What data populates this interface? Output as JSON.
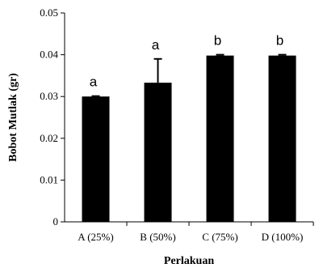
{
  "chart_data": {
    "type": "bar",
    "title": "",
    "xlabel": "Perlakuan",
    "ylabel": "Bobot Mutlak (gr)",
    "ylim": [
      0,
      0.05
    ],
    "yticks": [
      0,
      0.01,
      0.02,
      0.03,
      0.04,
      0.05
    ],
    "ytick_labels": [
      "0",
      "0.01",
      "0.02",
      "0.03",
      "0.04",
      "0.05"
    ],
    "categories": [
      "A (25%)",
      "B (50%)",
      "C (75%)",
      "D (100%)"
    ],
    "values": [
      0.03,
      0.0333,
      0.0398,
      0.0398
    ],
    "error_upper": [
      0.0301,
      0.039,
      0.04,
      0.04
    ],
    "significance_labels": [
      "a",
      "a",
      "b",
      "b"
    ],
    "bar_color": "#000000",
    "grid": false,
    "legend": "none"
  }
}
